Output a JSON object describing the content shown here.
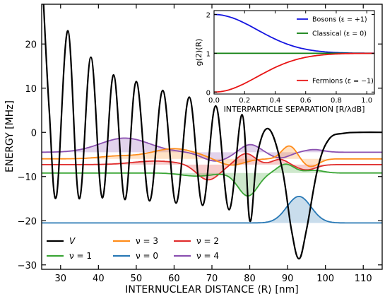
{
  "chart_data": {
    "type": "line",
    "xlabel": "INTERNUCLEAR DISTANCE ⟨R⟩ [nm]",
    "ylabel": "ENERGY [MHz]",
    "xlim": [
      25,
      115
    ],
    "ylim": [
      -31,
      29
    ],
    "xticks": [
      30,
      40,
      50,
      60,
      70,
      80,
      90,
      100,
      110
    ],
    "yticks": [
      -30,
      -20,
      -10,
      0,
      10,
      20
    ],
    "legend": {
      "placement": "lower-left",
      "ncol": 3
    },
    "series": [
      {
        "name": "V",
        "label": "V",
        "color": "#000000",
        "description_points": {
          "x": [
            25.5,
            27,
            28.9,
            31.9,
            34.9,
            38,
            41,
            44,
            47,
            50,
            53.5,
            57,
            60.5,
            64,
            67.5,
            71,
            74.5,
            78,
            80,
            82,
            85,
            88.5,
            91,
            93,
            95,
            98,
            101,
            105,
            110,
            115
          ],
          "y": [
            29,
            5,
            -14.5,
            23,
            -15,
            17,
            -14.8,
            13,
            -15.2,
            11.5,
            -15.5,
            9.5,
            -16,
            8,
            -16.5,
            6,
            -17.5,
            4,
            -20,
            -5,
            0.8,
            -8,
            -22,
            -28.6,
            -22,
            -8,
            -1.5,
            -0.2,
            0,
            0
          ]
        }
      },
      {
        "name": "ν = 0",
        "label": "ν = 0",
        "color": "#2878b5",
        "baseline": -20.5,
        "peak": {
          "x": 93,
          "y": -14.5
        }
      },
      {
        "name": "ν = 1",
        "label": "ν = 1",
        "color": "#3aa535",
        "baseline": -9.2
      },
      {
        "name": "ν = 2",
        "label": "ν = 2",
        "color": "#e02e2e",
        "baseline": -7.3
      },
      {
        "name": "ν = 3",
        "label": "ν = 3",
        "color": "#ff8c1a",
        "baseline": -6.0
      },
      {
        "name": "ν = 4",
        "label": "ν = 4",
        "color": "#8a50b0",
        "baseline": -4.5
      }
    ],
    "inset": {
      "xlabel": "INTERPARTICLE SEPARATION [R/λdB]",
      "ylabel": "g(2)(R)",
      "xlim": [
        0,
        1.05
      ],
      "ylim": [
        -0.05,
        2.1
      ],
      "xticks": [
        "0.0",
        "0.2",
        "0.4",
        "0.6",
        "0.8",
        "1.0"
      ],
      "yticks": [
        "0",
        "1",
        "2"
      ],
      "series": [
        {
          "name": "Bosons (ε = +1)",
          "color": "#1515e0",
          "equation": "1 + exp(-2πR²/λ²)"
        },
        {
          "name": "Classical (ε = 0)",
          "color": "#108010",
          "value": 1
        },
        {
          "name": "Fermions (ε = −1)",
          "color": "#e81515",
          "equation": "1 - exp(-2πR²/λ²)"
        }
      ]
    }
  }
}
